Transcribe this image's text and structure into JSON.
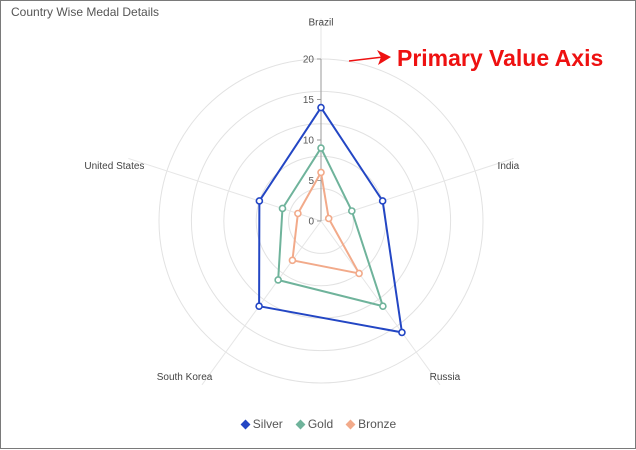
{
  "chart_data": {
    "type": "radar",
    "title": "Country Wise Medal Details",
    "categories": [
      "Brazil",
      "India",
      "Russia",
      "South Korea",
      "United States"
    ],
    "series": [
      {
        "name": "Silver",
        "color": "#2346c4",
        "values": [
          14,
          8,
          17,
          13,
          8
        ]
      },
      {
        "name": "Gold",
        "color": "#6fb39b",
        "values": [
          9,
          4,
          13,
          9,
          5
        ]
      },
      {
        "name": "Bronze",
        "color": "#f2aa8a",
        "values": [
          6,
          1,
          8,
          6,
          3
        ]
      }
    ],
    "r_range": [
      0,
      20
    ],
    "ticks": [
      0,
      5,
      10,
      15,
      20
    ],
    "legend_position": "bottom",
    "gridlines": "circular"
  },
  "annotation": {
    "text": "Primary Value Axis",
    "color": "#ee1111"
  }
}
